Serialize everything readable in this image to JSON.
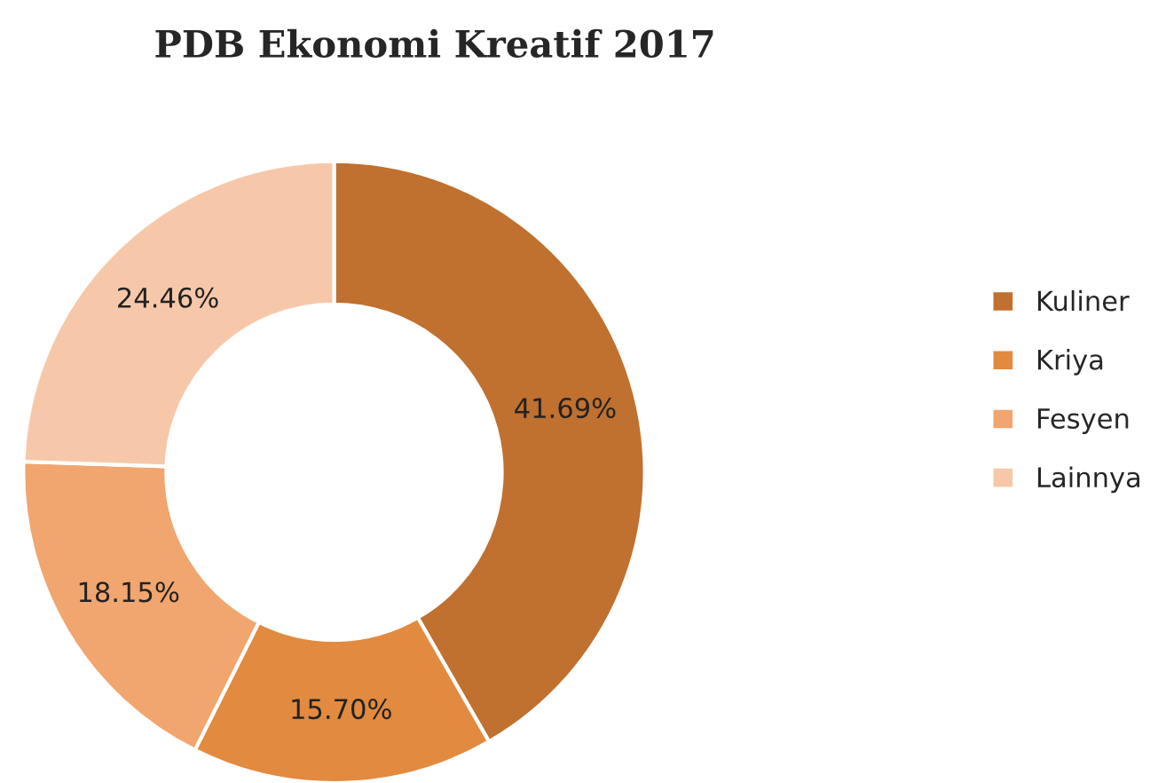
{
  "chart_data": {
    "type": "donut",
    "title": "PDB Ekonomi Kreatif 2017",
    "categories": [
      "Kuliner",
      "Kriya",
      "Fesyen",
      "Lainnya"
    ],
    "values": [
      41.69,
      15.7,
      18.15,
      24.46
    ],
    "value_labels": [
      "41.69%",
      "15.70%",
      "18.15%",
      "24.46%"
    ],
    "colors": [
      "#c0702f",
      "#e28a3f",
      "#f1a56f",
      "#f6c8a9"
    ],
    "legend": "right"
  }
}
